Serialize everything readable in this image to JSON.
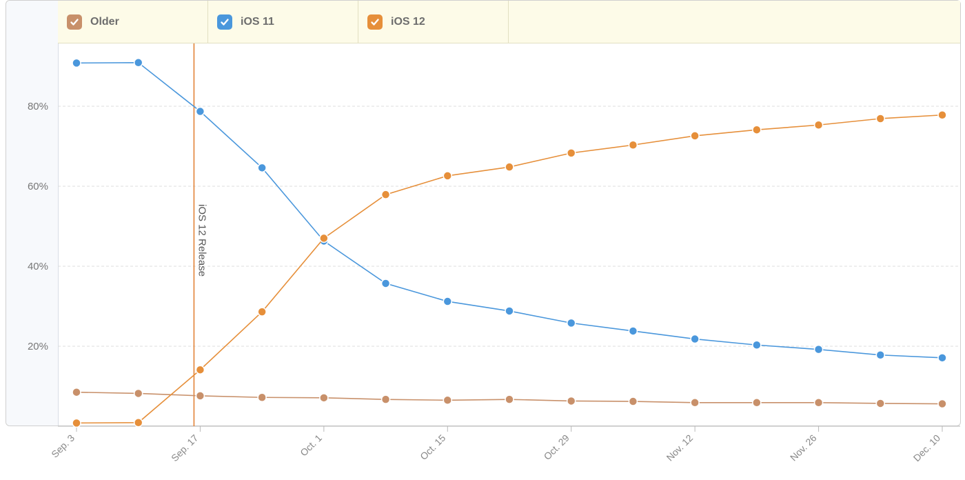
{
  "legend": {
    "items": [
      {
        "label": "Older",
        "color": "#c8906a",
        "checked": true
      },
      {
        "label": "iOS 11",
        "color": "#4a97dc",
        "checked": true
      },
      {
        "label": "iOS 12",
        "color": "#e68f3a",
        "checked": true
      }
    ]
  },
  "chart_data": {
    "type": "line",
    "title": "",
    "xlabel": "",
    "ylabel": "",
    "x": [
      "Sep. 3",
      "Sep. 10",
      "Sep. 17",
      "Sep. 24",
      "Oct. 1",
      "Oct. 8",
      "Oct. 15",
      "Oct. 22",
      "Oct. 29",
      "Nov. 5",
      "Nov. 12",
      "Nov. 19",
      "Nov. 26",
      "Dec. 3",
      "Dec. 10"
    ],
    "x_tick_labels": [
      "Sep. 3",
      "Sep. 17",
      "Oct. 1",
      "Oct. 15",
      "Oct. 29",
      "Nov. 12",
      "Nov. 26",
      "Dec. 10"
    ],
    "y_tick_labels": [
      "20%",
      "40%",
      "60%",
      "80%"
    ],
    "y_ticks": [
      20,
      40,
      60,
      80
    ],
    "ylim": [
      0,
      95
    ],
    "grid": true,
    "legend_position": "top",
    "series": [
      {
        "name": "Older",
        "color": "#c8906a",
        "values": [
          8.5,
          8.2,
          7.6,
          7.2,
          7.1,
          6.7,
          6.5,
          6.7,
          6.3,
          6.2,
          5.9,
          5.9,
          5.9,
          5.7,
          5.6
        ]
      },
      {
        "name": "iOS 11",
        "color": "#4a97dc",
        "values": [
          90.8,
          90.9,
          78.7,
          64.6,
          46.3,
          35.7,
          31.2,
          28.8,
          25.8,
          23.8,
          21.8,
          20.3,
          19.2,
          17.8,
          17.1
        ]
      },
      {
        "name": "iOS 12",
        "color": "#e68f3a",
        "values": [
          0.8,
          0.9,
          14.1,
          28.6,
          47.0,
          57.9,
          62.6,
          64.8,
          68.3,
          70.3,
          72.6,
          74.1,
          75.3,
          76.9,
          77.8
        ]
      }
    ],
    "annotations": [
      {
        "text": "iOS 12 Release",
        "x": "Sep. 17",
        "color": "#e07b2b"
      }
    ]
  }
}
